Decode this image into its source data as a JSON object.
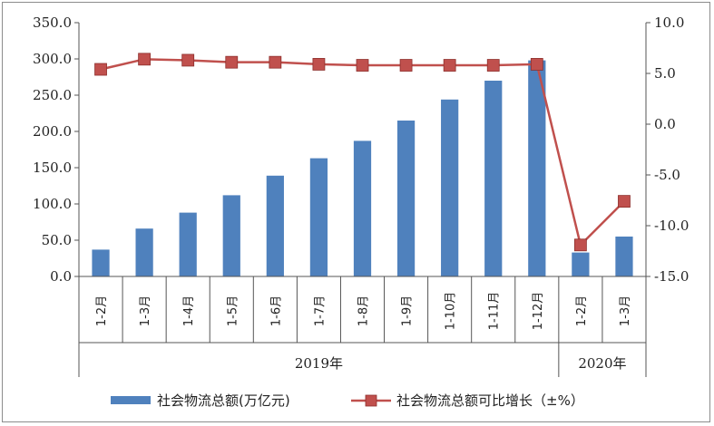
{
  "chart_data": {
    "type": "bar+line",
    "categories": [
      "1-2月",
      "1-3月",
      "1-4月",
      "1-5月",
      "1-6月",
      "1-7月",
      "1-8月",
      "1-9月",
      "1-10月",
      "1-11月",
      "1-12月",
      "1-2月",
      "1-3月"
    ],
    "year_groups": [
      {
        "label": "2019年",
        "start": 0,
        "end": 10
      },
      {
        "label": "2020年",
        "start": 11,
        "end": 12
      }
    ],
    "series": [
      {
        "name": "社会物流总额(万亿元)",
        "type": "bar",
        "axis": "left",
        "color": "#4f81bd",
        "values": [
          37,
          66,
          88,
          112,
          139,
          163,
          187,
          215,
          244,
          270,
          298,
          33,
          55
        ]
      },
      {
        "name": "社会物流总额可比增长（±%）",
        "type": "line",
        "axis": "right",
        "color": "#c0504d",
        "values": [
          5.4,
          6.4,
          6.3,
          6.1,
          6.1,
          5.9,
          5.8,
          5.8,
          5.8,
          5.8,
          5.9,
          -11.9,
          -7.6
        ]
      }
    ],
    "y_left": {
      "min": 0,
      "max": 350,
      "step": 50,
      "tick_labels": [
        "0.0",
        "50.0",
        "100.0",
        "150.0",
        "200.0",
        "250.0",
        "300.0",
        "350.0"
      ]
    },
    "y_right": {
      "min": -15,
      "max": 10,
      "step": 5,
      "tick_labels": [
        "-15.0",
        "-10.0",
        "-5.0",
        "0.0",
        "5.0",
        "10.0"
      ]
    },
    "grid": false,
    "legend_position": "bottom"
  }
}
